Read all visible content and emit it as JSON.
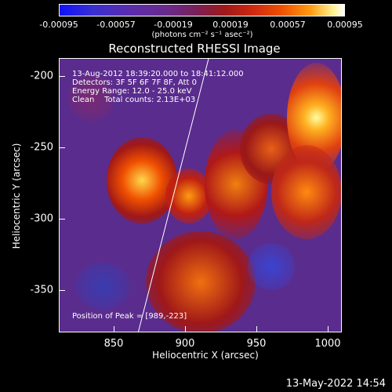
{
  "colorbar": {
    "ticks": [
      "-0.00095",
      "-0.00057",
      "-0.00019",
      "0.00019",
      "0.00057",
      "0.00095"
    ],
    "unit": "(photons cm⁻² s⁻¹ asec⁻²)"
  },
  "title": "Reconstructed RHESSI Image",
  "info": {
    "time_range": "13-Aug-2012 18:39:20.000 to 18:41:12.000",
    "detectors": "Detectors: 3F 5F 6F 7F 8F, Att 0",
    "energy": "Energy Range: 12.0 - 25.0 keV",
    "clean": "Clean    Total counts: 2.13E+03",
    "peak": "Position of Peak = [989,-223]"
  },
  "axes": {
    "xlabel": "Heliocentric X (arcsec)",
    "ylabel": "Heliocentric Y (arcsec)",
    "xticks": [
      "850",
      "900",
      "950",
      "1000"
    ],
    "yticks": [
      "-200",
      "-250",
      "-300",
      "-350"
    ]
  },
  "footer": {
    "timestamp": "13-May-2022 14:54"
  },
  "colors": {
    "background": "#000000",
    "text": "#ffffff",
    "map_base": "#5a2c8e"
  }
}
